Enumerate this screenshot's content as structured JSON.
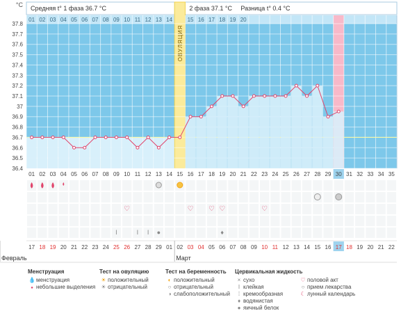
{
  "chart_data": {
    "type": "line",
    "y_unit": "°C",
    "ylim": [
      36.4,
      37.8
    ],
    "y_ticks": [
      "37.8",
      "37.7",
      "37.6",
      "37.5",
      "37.4",
      "37.3",
      "37.2",
      "37.1",
      "37",
      "36.9",
      "36.8",
      "36.7",
      "36.6",
      "36.5",
      "36.4"
    ],
    "header": {
      "phase1": "Средняя t° 1 фаза 36.7 °C",
      "phase2": "2 фаза 37.1 °C",
      "diff": "Разница t° 0.4 °C"
    },
    "ovulation_label": "ОВУЛЯЦИЯ",
    "ovulation_day": 15,
    "period_day": 30,
    "phase1_end_day": 14,
    "coverline": 36.7,
    "cycle_days": [
      "01",
      "02",
      "03",
      "04",
      "05",
      "06",
      "07",
      "08",
      "09",
      "10",
      "11",
      "12",
      "13",
      "14",
      "15",
      "16",
      "17",
      "18",
      "19",
      "20",
      "21",
      "22",
      "23",
      "24",
      "25",
      "26",
      "27",
      "28",
      "29",
      "30",
      "31",
      "32",
      "33",
      "34",
      "35"
    ],
    "top_days": [
      "01",
      "02",
      "03",
      "04",
      "05",
      "06",
      "07",
      "08",
      "09",
      "10",
      "11",
      "12",
      "13",
      "14",
      "15",
      "16",
      "17",
      "18",
      "19",
      "20"
    ],
    "temperatures": [
      36.7,
      36.7,
      36.7,
      36.7,
      36.6,
      36.6,
      36.7,
      36.7,
      36.7,
      36.7,
      36.6,
      36.7,
      36.6,
      36.7,
      36.7,
      36.9,
      36.9,
      37.0,
      37.1,
      37.1,
      37.0,
      37.1,
      37.1,
      37.1,
      37.1,
      37.2,
      37.1,
      37.2,
      36.9,
      36.95
    ],
    "dates": [
      "17",
      "18",
      "19",
      "20",
      "21",
      "22",
      "23",
      "24",
      "25",
      "26",
      "27",
      "28",
      "29",
      "01",
      "02",
      "03",
      "04",
      "05",
      "06",
      "07",
      "08",
      "09",
      "10",
      "11",
      "12",
      "13",
      "14",
      "15",
      "16",
      "17",
      "18",
      "19",
      "20",
      "21",
      "22"
    ],
    "red_dates": [
      1,
      2,
      8,
      9,
      15,
      16,
      22,
      23,
      29,
      30
    ],
    "months": [
      {
        "name": "Февраль",
        "day": 1
      },
      {
        "name": "Март",
        "day": 15
      }
    ],
    "menstruation_icons": [
      1,
      2,
      3,
      4
    ],
    "menstruation_small": [
      4
    ],
    "ovulation_test_neg_day": 13,
    "ovulation_test_pos_day": 15,
    "pregnancy_icons": [
      {
        "day": 28,
        "kind": "negative"
      },
      {
        "day": 30,
        "kind": "weak"
      }
    ],
    "intercourse_days": [
      10,
      16,
      18,
      19,
      23
    ],
    "mucus": [
      {
        "day": 9,
        "kind": "sticky"
      },
      {
        "day": 11,
        "kind": "sticky"
      },
      {
        "day": 12,
        "kind": "sticky"
      },
      {
        "day": 13,
        "kind": "egg"
      },
      {
        "day": 19,
        "kind": "watery"
      }
    ]
  },
  "legend": {
    "menstruation": {
      "title": "Менструация",
      "items": [
        "менструация",
        "небольшие выделения"
      ]
    },
    "ovulation_test": {
      "title": "Тест на овуляцию",
      "items": [
        "положительный",
        "отрицательный"
      ]
    },
    "pregnancy_test": {
      "title": "Тест на беременность",
      "items": [
        "положительный",
        "отрицательный",
        "слабоположительный"
      ]
    },
    "cervical": {
      "title": "Цервикальная жидкость",
      "items": [
        "сухо",
        "клейкая",
        "кремообразная",
        "водянистая",
        "яичный белок"
      ]
    },
    "other": {
      "items": [
        "половой акт",
        "прием лекарства",
        "лунный календарь"
      ]
    }
  }
}
